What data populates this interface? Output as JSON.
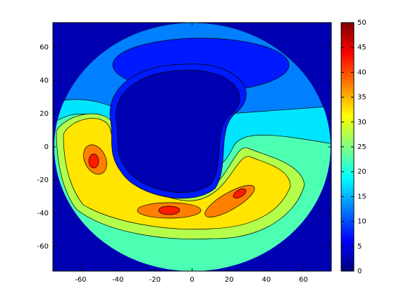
{
  "chart_data": {
    "type": "contourf",
    "xlim": [
      -75,
      75
    ],
    "ylim": [
      -75,
      75
    ],
    "xticks": [
      -60,
      -40,
      -20,
      0,
      20,
      40,
      60
    ],
    "yticks": [
      -60,
      -40,
      -20,
      0,
      20,
      40,
      60
    ],
    "clim": [
      0,
      50
    ],
    "cticks": [
      0,
      5,
      10,
      15,
      20,
      25,
      30,
      35,
      40,
      45,
      50
    ],
    "levels": [
      0,
      5,
      10,
      15,
      20,
      25,
      30,
      35,
      40,
      45,
      50
    ],
    "colormap": "jet"
  }
}
